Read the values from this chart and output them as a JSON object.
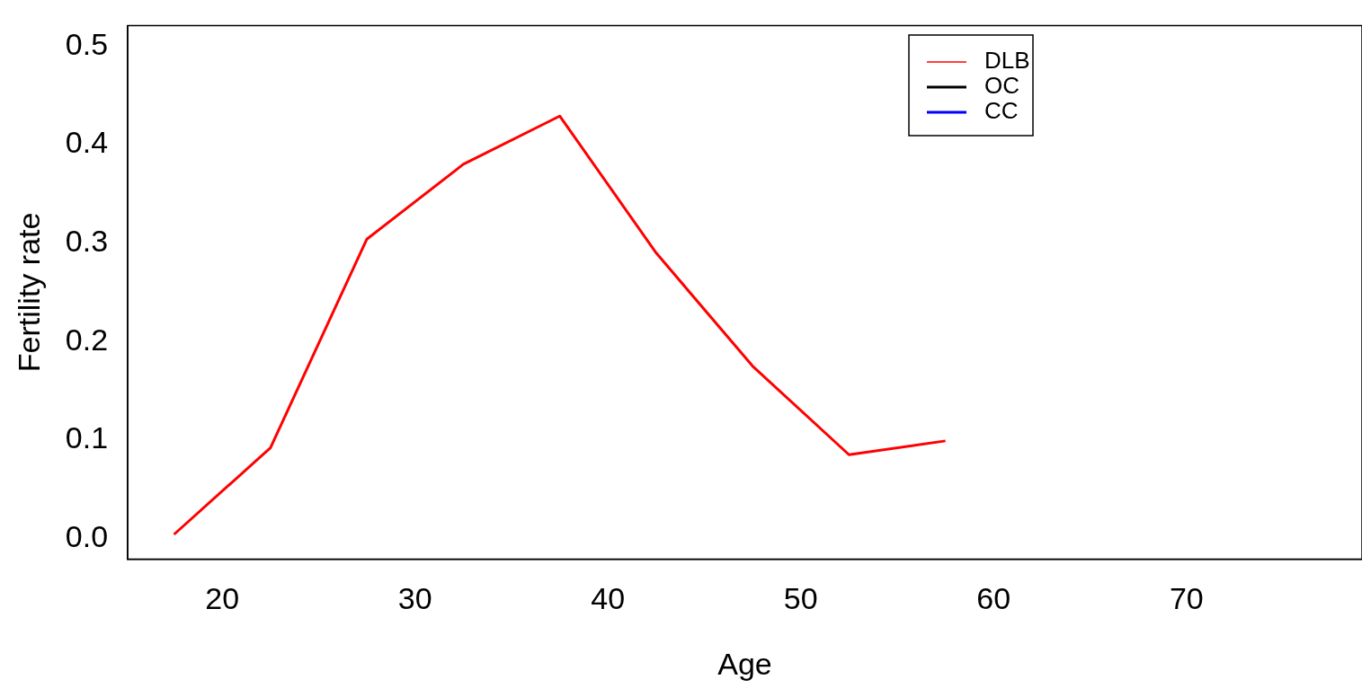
{
  "chart_data": {
    "type": "line",
    "xlabel": "Age",
    "ylabel": "Fertility rate",
    "x": [
      17.5,
      22.5,
      27.5,
      32.5,
      37.5,
      42.5,
      47.5,
      52.5,
      57.5
    ],
    "series": [
      {
        "name": "DLB",
        "color": "#ff0000",
        "values": [
          0.004,
          0.092,
          0.304,
          0.38,
          0.429,
          0.29,
          0.175,
          0.085,
          0.099
        ]
      },
      {
        "name": "OC",
        "color": "#000000",
        "values": [
          null,
          null,
          null,
          null,
          null,
          null,
          null,
          null,
          null
        ]
      },
      {
        "name": "CC",
        "color": "#0000ff",
        "values": [
          null,
          null,
          null,
          null,
          null,
          null,
          null,
          null,
          null
        ]
      }
    ],
    "xlim": [
      15.1,
      79.1
    ],
    "xticks": [
      20,
      30,
      40,
      50,
      60,
      70
    ],
    "ylim": [
      -0.021,
      0.521
    ],
    "yticks": [
      {
        "value": 0,
        "label": "0.0"
      },
      0.1,
      0.2,
      0.3,
      0.4,
      0.5
    ],
    "grid": false,
    "legend": "top",
    "marker": "none",
    "line_style": "solid"
  }
}
